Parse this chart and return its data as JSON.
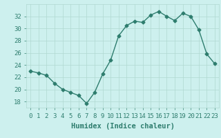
{
  "x": [
    0,
    1,
    2,
    3,
    4,
    5,
    6,
    7,
    8,
    9,
    10,
    11,
    12,
    13,
    14,
    15,
    16,
    17,
    18,
    19,
    20,
    21,
    22,
    23
  ],
  "y": [
    23.0,
    22.7,
    22.3,
    21.0,
    20.0,
    19.5,
    19.0,
    17.7,
    19.5,
    22.5,
    24.8,
    28.8,
    30.5,
    31.2,
    31.0,
    32.2,
    32.8,
    32.0,
    31.3,
    32.5,
    32.0,
    29.8,
    25.8,
    24.2
  ],
  "line_color": "#2e7d6e",
  "marker": "D",
  "markersize": 2.5,
  "linewidth": 1.0,
  "bg_color": "#cdf0ee",
  "grid_color": "#b0d8d0",
  "xlabel": "Humidex (Indice chaleur)",
  "xlabel_fontsize": 7.5,
  "xlabel_color": "#2e7d6e",
  "tick_color": "#2e7d6e",
  "ylim": [
    17,
    34
  ],
  "yticks": [
    18,
    20,
    22,
    24,
    26,
    28,
    30,
    32
  ],
  "xlim": [
    -0.5,
    23.5
  ],
  "xticks": [
    0,
    1,
    2,
    3,
    4,
    5,
    6,
    7,
    8,
    9,
    10,
    11,
    12,
    13,
    14,
    15,
    16,
    17,
    18,
    19,
    20,
    21,
    22,
    23
  ],
  "xtick_labels": [
    "0",
    "1",
    "2",
    "3",
    "4",
    "5",
    "6",
    "7",
    "8",
    "9",
    "10",
    "11",
    "12",
    "13",
    "14",
    "15",
    "16",
    "17",
    "18",
    "19",
    "20",
    "21",
    "22",
    "23"
  ],
  "tick_fontsize": 6.5
}
